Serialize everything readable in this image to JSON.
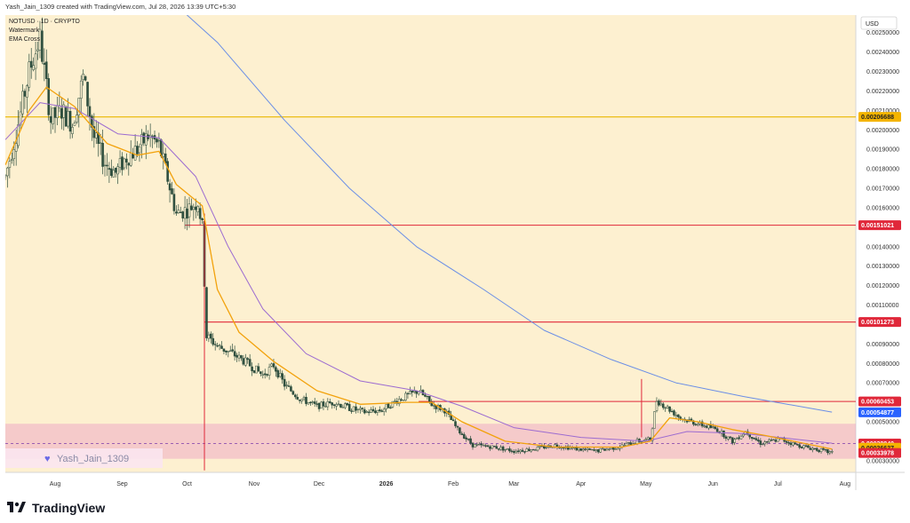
{
  "header": {
    "text": "Yash_Jain_1309 created with TradingView.com, Jul 28, 2026 13:39 UTC+5:30"
  },
  "footer": {
    "brand": "TradingView",
    "logo_icon": "tradingview-logo-icon"
  },
  "colors": {
    "background": "#fdf0d0",
    "candle_up": "#2f4f3f",
    "candle_down": "#2f4f3f",
    "ema_fast": "#f2a20c",
    "ema_mid": "#9c6bd0",
    "ema_slow": "#6a8ee6",
    "resistance_line": "#e0283a",
    "support_line_yellow": "#e9b700",
    "support_zone": "#ec9cc4",
    "zone_dashed": "#8d4fb0",
    "label_red": "#e0283a",
    "label_yellow": "#f4b400",
    "label_blue": "#2962ff"
  },
  "chart_data": {
    "type": "candlestick",
    "legend": {
      "symbol": "NOTUSD · 1D · CRYPTO",
      "line2": "Watermark",
      "line3": "EMA Cross"
    },
    "currency_label": "USD",
    "watermark": {
      "text": "Yash_Jain_1309",
      "icon": "heart-icon"
    },
    "x_start": "2025-07-09",
    "x_end": "2026-08-06",
    "x_tick_labels": [
      {
        "date": "2025-08-01",
        "label": "Aug",
        "bold": false
      },
      {
        "date": "2025-09-01",
        "label": "Sep",
        "bold": false
      },
      {
        "date": "2025-10-01",
        "label": "Oct",
        "bold": false
      },
      {
        "date": "2025-11-01",
        "label": "Nov",
        "bold": false
      },
      {
        "date": "2025-12-01",
        "label": "Dec",
        "bold": false
      },
      {
        "date": "2026-01-01",
        "label": "2026",
        "bold": true
      },
      {
        "date": "2026-02-01",
        "label": "Feb",
        "bold": false
      },
      {
        "date": "2026-03-01",
        "label": "Mar",
        "bold": false
      },
      {
        "date": "2026-04-01",
        "label": "Apr",
        "bold": false
      },
      {
        "date": "2026-05-01",
        "label": "May",
        "bold": false
      },
      {
        "date": "2026-06-01",
        "label": "Jun",
        "bold": false
      },
      {
        "date": "2026-07-01",
        "label": "Jul",
        "bold": false
      },
      {
        "date": "2026-08-01",
        "label": "Aug",
        "bold": false
      }
    ],
    "ylim": [
      0.00024,
      0.00259
    ],
    "y_tick_labels": [
      "0.00250000",
      "0.00240000",
      "0.00230000",
      "0.00220000",
      "0.00210000",
      "0.00200000",
      "0.00190000",
      "0.00180000",
      "0.00170000",
      "0.00160000",
      "0.00140000",
      "0.00130000",
      "0.00120000",
      "0.00110000",
      "0.00090000",
      "0.00080000",
      "0.00070000",
      "0.00050000",
      "0.00030000"
    ],
    "horizontal_lines": [
      {
        "value": 0.00206688,
        "label": "0.00206688",
        "color": "yellow",
        "from": "2025-07-09"
      },
      {
        "value": 0.00151021,
        "label": "0.00151021",
        "color": "red",
        "from": "2025-09-30"
      },
      {
        "value": 0.00101273,
        "label": "0.00101273",
        "color": "red",
        "from": "2025-10-09"
      },
      {
        "value": 0.00060453,
        "label": "0.00060453",
        "color": "red",
        "from": "2026-01-16"
      }
    ],
    "price_labels": [
      {
        "value": 0.00054877,
        "label": "0.00054877",
        "color": "blue"
      },
      {
        "value": 0.0003884,
        "label": "0.00038840",
        "color": "red"
      },
      {
        "value": 0.00036637,
        "label": "0.00036637",
        "color": "yellow"
      },
      {
        "value": 0.00033978,
        "label": "0.00033978",
        "color": "red"
      }
    ],
    "zone": {
      "top": 0.00049,
      "bottom": 0.00031,
      "dashed_value": 0.000388
    },
    "wick_spikes": [
      {
        "date": "2025-10-09",
        "high": 0.00157,
        "low": 0.00025
      },
      {
        "date": "2026-04-29",
        "high": 0.00072,
        "low": 0.00042
      }
    ],
    "price_path": [
      [
        "2025-07-09",
        0.00176
      ],
      [
        "2025-07-14",
        0.00198
      ],
      [
        "2025-07-20",
        0.0023
      ],
      [
        "2025-07-25",
        0.00247
      ],
      [
        "2025-07-30",
        0.00205
      ],
      [
        "2025-08-04",
        0.0021
      ],
      [
        "2025-08-09",
        0.00203
      ],
      [
        "2025-08-14",
        0.00227
      ],
      [
        "2025-08-19",
        0.00196
      ],
      [
        "2025-08-24",
        0.00183
      ],
      [
        "2025-08-29",
        0.00178
      ],
      [
        "2025-09-03",
        0.00186
      ],
      [
        "2025-09-08",
        0.0019
      ],
      [
        "2025-09-13",
        0.00197
      ],
      [
        "2025-09-18",
        0.00192
      ],
      [
        "2025-09-22",
        0.00175
      ],
      [
        "2025-09-26",
        0.00157
      ],
      [
        "2025-10-01",
        0.00159
      ],
      [
        "2025-10-06",
        0.00163
      ],
      [
        "2025-10-08",
        0.0015
      ],
      [
        "2025-10-10",
        0.00094
      ],
      [
        "2025-10-15",
        0.00089
      ],
      [
        "2025-10-22",
        0.00085
      ],
      [
        "2025-10-29",
        0.0008
      ],
      [
        "2025-11-05",
        0.00074
      ],
      [
        "2025-11-10",
        0.00079
      ],
      [
        "2025-11-15",
        0.00069
      ],
      [
        "2025-11-22",
        0.00062
      ],
      [
        "2025-11-30",
        0.00058
      ],
      [
        "2025-12-08",
        0.0006
      ],
      [
        "2025-12-15",
        0.00057
      ],
      [
        "2025-12-22",
        0.00055
      ],
      [
        "2025-12-30",
        0.00056
      ],
      [
        "2026-01-06",
        0.00061
      ],
      [
        "2026-01-12",
        0.00064
      ],
      [
        "2026-01-16",
        0.00066
      ],
      [
        "2026-01-22",
        0.00059
      ],
      [
        "2026-01-28",
        0.00056
      ],
      [
        "2026-02-03",
        0.00046
      ],
      [
        "2026-02-10",
        0.00038
      ],
      [
        "2026-02-20",
        0.00037
      ],
      [
        "2026-03-01",
        0.00035
      ],
      [
        "2026-03-10",
        0.00036
      ],
      [
        "2026-03-20",
        0.00038
      ],
      [
        "2026-03-30",
        0.00036
      ],
      [
        "2026-04-08",
        0.00035
      ],
      [
        "2026-04-18",
        0.00037
      ],
      [
        "2026-04-27",
        0.0004
      ],
      [
        "2026-05-03",
        0.00041
      ],
      [
        "2026-05-06",
        0.00061
      ],
      [
        "2026-05-10",
        0.00058
      ],
      [
        "2026-05-17",
        0.00052
      ],
      [
        "2026-05-25",
        0.00049
      ],
      [
        "2026-06-03",
        0.00046
      ],
      [
        "2026-06-10",
        0.0004
      ],
      [
        "2026-06-16",
        0.00045
      ],
      [
        "2026-06-23",
        0.00039
      ],
      [
        "2026-07-02",
        0.00041
      ],
      [
        "2026-07-10",
        0.00038
      ],
      [
        "2026-07-18",
        0.00036
      ],
      [
        "2026-07-26",
        0.00034
      ]
    ],
    "ema_fast_path": [
      [
        "2025-07-09",
        0.00182
      ],
      [
        "2025-07-20",
        0.0021
      ],
      [
        "2025-07-28",
        0.00222
      ],
      [
        "2025-08-10",
        0.00212
      ],
      [
        "2025-08-25",
        0.00193
      ],
      [
        "2025-09-08",
        0.00187
      ],
      [
        "2025-09-18",
        0.00189
      ],
      [
        "2025-09-26",
        0.00172
      ],
      [
        "2025-10-08",
        0.00161
      ],
      [
        "2025-10-15",
        0.00118
      ],
      [
        "2025-10-25",
        0.00096
      ],
      [
        "2025-11-10",
        0.00081
      ],
      [
        "2025-11-30",
        0.00066
      ],
      [
        "2025-12-20",
        0.00059
      ],
      [
        "2026-01-10",
        0.0006
      ],
      [
        "2026-01-22",
        0.0006
      ],
      [
        "2026-02-05",
        0.0005
      ],
      [
        "2026-02-25",
        0.0004
      ],
      [
        "2026-03-20",
        0.00037
      ],
      [
        "2026-04-20",
        0.00037
      ],
      [
        "2026-05-03",
        0.0004
      ],
      [
        "2026-05-12",
        0.00052
      ],
      [
        "2026-05-25",
        0.0005
      ],
      [
        "2026-06-10",
        0.00046
      ],
      [
        "2026-06-25",
        0.00043
      ],
      [
        "2026-07-26",
        0.00036
      ]
    ],
    "ema_mid_path": [
      [
        "2025-07-09",
        0.00195
      ],
      [
        "2025-07-25",
        0.00214
      ],
      [
        "2025-08-10",
        0.00211
      ],
      [
        "2025-08-30",
        0.00198
      ],
      [
        "2025-09-18",
        0.00196
      ],
      [
        "2025-10-05",
        0.00176
      ],
      [
        "2025-10-20",
        0.0014
      ],
      [
        "2025-11-05",
        0.00108
      ],
      [
        "2025-11-25",
        0.00085
      ],
      [
        "2025-12-20",
        0.00071
      ],
      [
        "2026-01-15",
        0.00066
      ],
      [
        "2026-02-05",
        0.00058
      ],
      [
        "2026-03-01",
        0.00047
      ],
      [
        "2026-04-01",
        0.00042
      ],
      [
        "2026-05-01",
        0.0004
      ],
      [
        "2026-05-20",
        0.00045
      ],
      [
        "2026-06-15",
        0.00044
      ],
      [
        "2026-07-26",
        0.00039
      ]
    ],
    "ema_slow_path": [
      [
        "2025-09-20",
        0.0027
      ],
      [
        "2025-10-15",
        0.00245
      ],
      [
        "2025-11-15",
        0.00205
      ],
      [
        "2025-12-15",
        0.0017
      ],
      [
        "2026-01-15",
        0.0014
      ],
      [
        "2026-02-15",
        0.00118
      ],
      [
        "2026-03-15",
        0.00097
      ],
      [
        "2026-04-15",
        0.00082
      ],
      [
        "2026-05-15",
        0.0007
      ],
      [
        "2026-06-15",
        0.00063
      ],
      [
        "2026-07-26",
        0.00055
      ]
    ]
  }
}
